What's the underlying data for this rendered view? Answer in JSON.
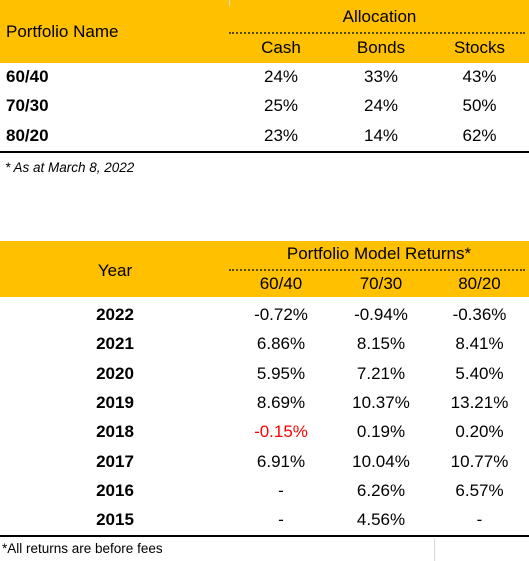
{
  "allocation_table": {
    "header": {
      "portfolio_name": "Portfolio Name",
      "group_label": "Allocation",
      "columns": [
        "Cash",
        "Bonds",
        "Stocks"
      ]
    },
    "rows": [
      {
        "name": "60/40",
        "values": [
          "24%",
          "33%",
          "43%"
        ]
      },
      {
        "name": "70/30",
        "values": [
          "25%",
          "24%",
          "50%"
        ]
      },
      {
        "name": "80/20",
        "values": [
          "23%",
          "14%",
          "62%"
        ]
      }
    ],
    "footnote": "* As at March 8, 2022"
  },
  "returns_table": {
    "header": {
      "year": "Year",
      "group_label": "Portfolio Model Returns*",
      "columns": [
        "60/40",
        "70/30",
        "80/20"
      ]
    },
    "rows": [
      {
        "year": "2022",
        "values": [
          "-0.72%",
          "-0.94%",
          "-0.36%"
        ]
      },
      {
        "year": "2021",
        "values": [
          "6.86%",
          "8.15%",
          "8.41%"
        ]
      },
      {
        "year": "2020",
        "values": [
          "5.95%",
          "7.21%",
          "5.40%"
        ]
      },
      {
        "year": "2019",
        "values": [
          "8.69%",
          "10.37%",
          "13.21%"
        ]
      },
      {
        "year": "2018",
        "values": [
          "-0.15%",
          "0.19%",
          "0.20%"
        ]
      },
      {
        "year": "2017",
        "values": [
          "6.91%",
          "10.04%",
          "10.77%"
        ]
      },
      {
        "year": "2016",
        "values": [
          "-",
          "6.26%",
          "6.57%"
        ]
      },
      {
        "year": "2015",
        "values": [
          "-",
          "4.56%",
          "-"
        ]
      }
    ],
    "footnote": "*All returns are before fees"
  },
  "colors": {
    "header_band": "#FFC000",
    "negative_highlight": "#FF0000"
  }
}
